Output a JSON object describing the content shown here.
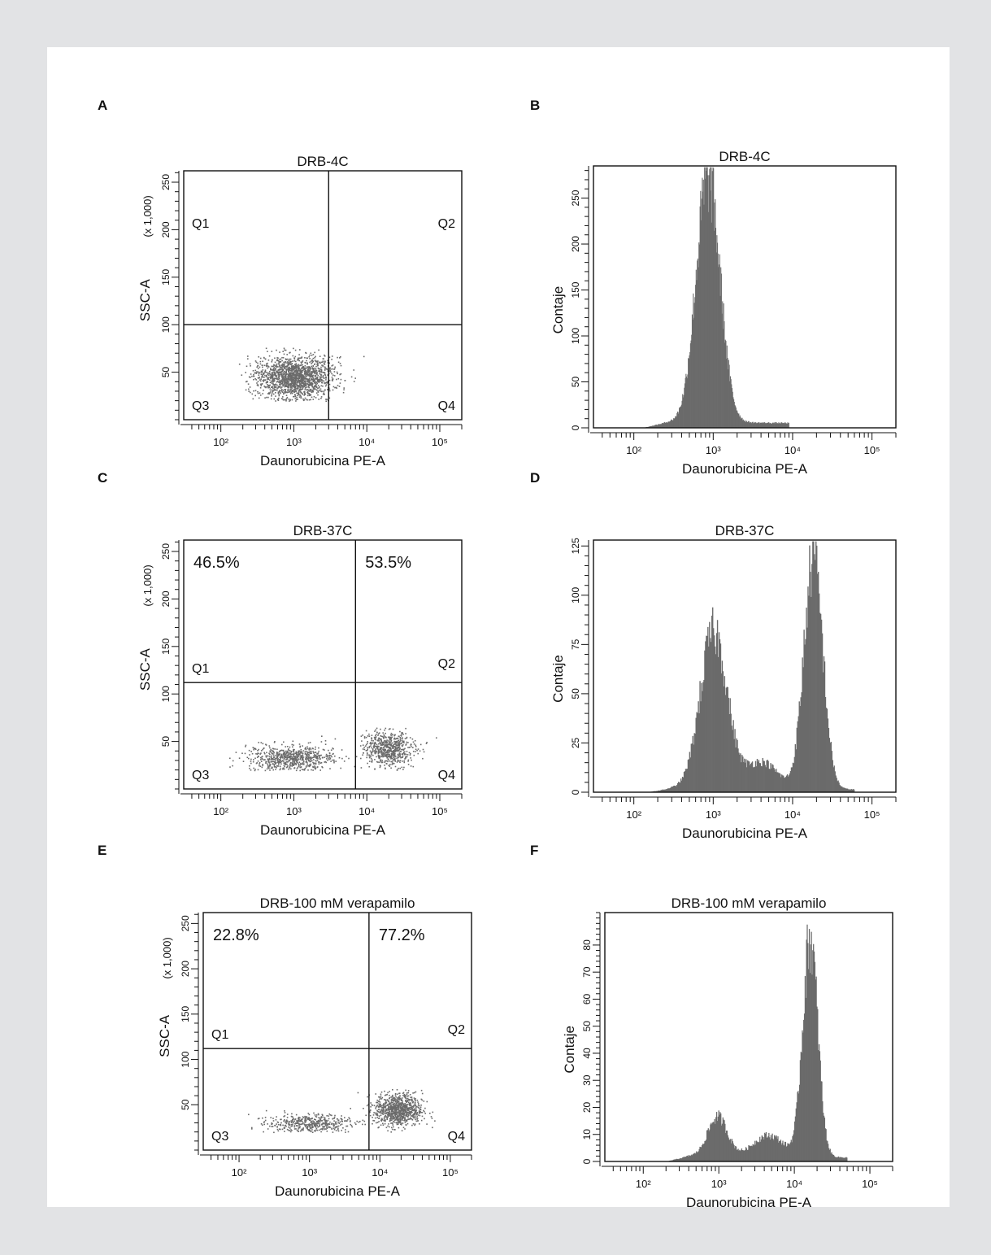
{
  "figure": {
    "background": "#e2e3e5",
    "card_color": "#ffffff",
    "data_color": "#6b6b6b"
  },
  "chart_data": [
    {
      "id": "A",
      "type": "scatter",
      "title": "DRB-4C",
      "xlabel": "Daunorubicina PE-A",
      "ylabel": "SSC-A",
      "ylabel_unit": "(x 1,000)",
      "x_scale": "log",
      "xlim": [
        31,
        200000
      ],
      "ylim": [
        0,
        262
      ],
      "x_ticks": [
        100,
        1000,
        10000,
        100000
      ],
      "x_tick_labels": [
        "10²",
        "10³",
        "10⁴",
        "10⁵"
      ],
      "y_ticks": [
        50,
        100,
        150,
        200,
        250
      ],
      "y_tick_labels": [
        "50",
        "100",
        "150",
        "200",
        "250"
      ],
      "gate": {
        "x": 3000,
        "y": 100
      },
      "quadrants": {
        "Q1": "Q1",
        "Q2": "Q2",
        "Q3": "Q3",
        "Q4": "Q4"
      },
      "percentages": [],
      "clusters": [
        {
          "x_center": 1000,
          "y_center": 45,
          "spread_log_x": 0.25,
          "spread_y": 11,
          "count": 1700,
          "y_max": 78
        }
      ]
    },
    {
      "id": "B",
      "type": "area",
      "title": "DRB-4C",
      "xlabel": "Daunorubicina PE-A",
      "ylabel": "Contaje",
      "x_scale": "log",
      "xlim": [
        31,
        200000
      ],
      "ylim": [
        0,
        285
      ],
      "x_ticks": [
        100,
        1000,
        10000,
        100000
      ],
      "x_tick_labels": [
        "10²",
        "10³",
        "10⁴",
        "10⁵"
      ],
      "y_ticks": [
        0,
        50,
        100,
        150,
        200,
        250
      ],
      "y_tick_labels": [
        "0",
        "50",
        "100",
        "150",
        "200",
        "250"
      ],
      "peaks": [
        {
          "x": 850,
          "height": 275,
          "width_log": 0.15
        }
      ],
      "baseline": 6,
      "x_range": [
        130,
        9000
      ]
    },
    {
      "id": "C",
      "type": "scatter",
      "title": "DRB-37C",
      "xlabel": "Daunorubicina PE-A",
      "ylabel": "SSC-A",
      "ylabel_unit": "(x 1,000)",
      "x_scale": "log",
      "xlim": [
        31,
        200000
      ],
      "ylim": [
        0,
        262
      ],
      "x_ticks": [
        100,
        1000,
        10000,
        100000
      ],
      "x_tick_labels": [
        "10²",
        "10³",
        "10⁴",
        "10⁵"
      ],
      "y_ticks": [
        50,
        100,
        150,
        200,
        250
      ],
      "y_tick_labels": [
        "50",
        "100",
        "150",
        "200",
        "250"
      ],
      "gate": {
        "x": 7000,
        "y": 112
      },
      "quadrants": {
        "Q1": "Q1",
        "Q2": "Q2",
        "Q3": "Q3",
        "Q4": "Q4"
      },
      "percentages": [
        {
          "quadrant": "Q1",
          "text": "46.5%"
        },
        {
          "quadrant": "Q2",
          "text": "53.5%"
        }
      ],
      "clusters": [
        {
          "x_center": 900,
          "y_center": 33,
          "spread_log_x": 0.3,
          "spread_y": 7,
          "count": 700,
          "y_max": 60
        },
        {
          "x_center": 20000,
          "y_center": 43,
          "spread_log_x": 0.17,
          "spread_y": 9,
          "count": 650,
          "y_max": 65
        }
      ]
    },
    {
      "id": "D",
      "type": "area",
      "title": "DRB-37C",
      "xlabel": "Daunorubicina PE-A",
      "ylabel": "Contaje",
      "x_scale": "log",
      "xlim": [
        31,
        200000
      ],
      "ylim": [
        0,
        128
      ],
      "x_ticks": [
        100,
        1000,
        10000,
        100000
      ],
      "x_tick_labels": [
        "10²",
        "10³",
        "10⁴",
        "10⁵"
      ],
      "y_ticks": [
        0,
        25,
        50,
        75,
        100,
        125
      ],
      "y_tick_labels": [
        "0",
        "25",
        "50",
        "75",
        "100",
        "125"
      ],
      "peaks": [
        {
          "x": 1000,
          "height": 82,
          "width_log": 0.17
        },
        {
          "x": 4000,
          "height": 14,
          "width_log": 0.2
        },
        {
          "x": 18000,
          "height": 120,
          "width_log": 0.12
        }
      ],
      "baseline": 2,
      "x_range": [
        150,
        60000
      ]
    },
    {
      "id": "E",
      "type": "scatter",
      "title": "DRB-100 mM verapamilo",
      "xlabel": "Daunorubicina PE-A",
      "ylabel": "SSC-A",
      "ylabel_unit": "(x 1,000)",
      "x_scale": "log",
      "xlim": [
        31,
        200000
      ],
      "ylim": [
        0,
        262
      ],
      "x_ticks": [
        100,
        1000,
        10000,
        100000
      ],
      "x_tick_labels": [
        "10²",
        "10³",
        "10⁴",
        "10⁵"
      ],
      "y_ticks": [
        50,
        100,
        150,
        200,
        250
      ],
      "y_tick_labels": [
        "50",
        "100",
        "150",
        "200",
        "250"
      ],
      "gate": {
        "x": 7000,
        "y": 112
      },
      "quadrants": {
        "Q1": "Q1",
        "Q2": "Q2",
        "Q3": "Q3",
        "Q4": "Q4"
      },
      "percentages": [
        {
          "quadrant": "Q1",
          "text": "22.8%"
        },
        {
          "quadrant": "Q2",
          "text": "77.2%"
        }
      ],
      "clusters": [
        {
          "x_center": 1000,
          "y_center": 30,
          "spread_log_x": 0.3,
          "spread_y": 5,
          "count": 450,
          "y_max": 50
        },
        {
          "x_center": 18000,
          "y_center": 45,
          "spread_log_x": 0.17,
          "spread_y": 9,
          "count": 900,
          "y_max": 68
        }
      ]
    },
    {
      "id": "F",
      "type": "area",
      "title": "DRB-100 mM verapamilo",
      "xlabel": "Daunorubicina PE-A",
      "ylabel": "Contaje",
      "x_scale": "log",
      "xlim": [
        31,
        200000
      ],
      "ylim": [
        0,
        92
      ],
      "x_ticks": [
        100,
        1000,
        10000,
        100000
      ],
      "x_tick_labels": [
        "10²",
        "10³",
        "10⁴",
        "10⁵"
      ],
      "y_ticks": [
        0,
        10,
        20,
        30,
        40,
        50,
        60,
        70,
        80
      ],
      "y_tick_labels": [
        "0",
        "10",
        "20",
        "30",
        "40",
        "50",
        "60",
        "70",
        "80"
      ],
      "peaks": [
        {
          "x": 950,
          "height": 15,
          "width_log": 0.13
        },
        {
          "x": 4500,
          "height": 8,
          "width_log": 0.2
        },
        {
          "x": 16000,
          "height": 83,
          "width_log": 0.1
        }
      ],
      "baseline": 2,
      "x_range": [
        200,
        50000
      ]
    }
  ]
}
